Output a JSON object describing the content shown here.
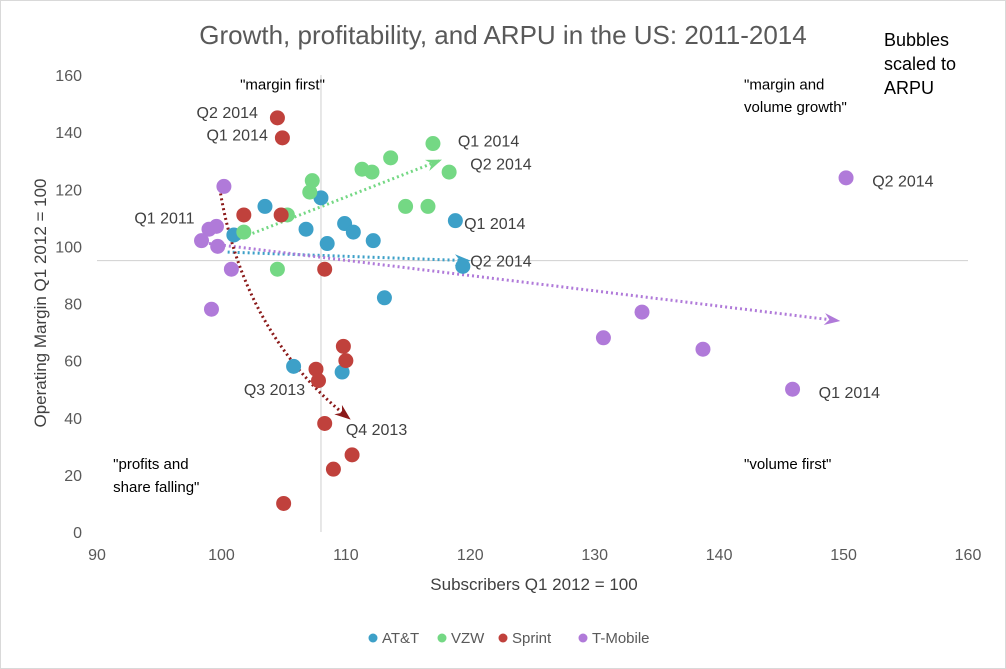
{
  "chart_data": {
    "type": "scatter",
    "title": "Growth, profitability,  and ARPU in the US: 2011-2014",
    "xlabel": "Subscribers Q1 2012 = 100",
    "ylabel": "Operating Margin Q1 2012 = 100",
    "xlim": [
      90,
      160
    ],
    "ylim": [
      0,
      160
    ],
    "xticks": [
      90,
      100,
      110,
      120,
      130,
      140,
      150,
      160
    ],
    "yticks": [
      0,
      20,
      40,
      60,
      80,
      100,
      120,
      140,
      160
    ],
    "reference_lines": {
      "x": 108,
      "y": 95
    },
    "note": [
      "Bubbles",
      "scaled  to",
      "ARPU"
    ],
    "quadrant_labels": [
      {
        "text": "\"margin first\"",
        "x": 101.5,
        "y": 155
      },
      {
        "text": "\"margin and",
        "x": 142,
        "y": 155
      },
      {
        "text": "volume growth\"",
        "x": 142,
        "y": 147
      },
      {
        "text": "\"profits and",
        "x": 91.3,
        "y": 22
      },
      {
        "text": "share falling\"",
        "x": 91.3,
        "y": 14
      },
      {
        "text": "\"volume first\"",
        "x": 142,
        "y": 22
      }
    ],
    "series": [
      {
        "name": "AT&T",
        "color": "#3da0c8",
        "points": [
          [
            101.0,
            104
          ],
          [
            103.5,
            114
          ],
          [
            106.8,
            106
          ],
          [
            108.0,
            117
          ],
          [
            108.5,
            101
          ],
          [
            109.9,
            108
          ],
          [
            110.6,
            105
          ],
          [
            112.2,
            102
          ],
          [
            113.1,
            82
          ],
          [
            118.8,
            109
          ],
          [
            119.4,
            93
          ],
          [
            105.8,
            58
          ],
          [
            109.7,
            56
          ]
        ]
      },
      {
        "name": "VZW",
        "color": "#74d884",
        "points": [
          [
            101.8,
            105
          ],
          [
            104.5,
            92
          ],
          [
            105.3,
            111
          ],
          [
            107.1,
            119
          ],
          [
            107.3,
            123
          ],
          [
            111.3,
            127
          ],
          [
            112.1,
            126
          ],
          [
            113.6,
            131
          ],
          [
            114.8,
            114
          ],
          [
            116.6,
            114
          ],
          [
            117.0,
            136
          ],
          [
            118.3,
            126
          ]
        ]
      },
      {
        "name": "Sprint",
        "color": "#c0413c",
        "points": [
          [
            104.5,
            145
          ],
          [
            104.9,
            138
          ],
          [
            101.8,
            111
          ],
          [
            104.8,
            111
          ],
          [
            108.3,
            92
          ],
          [
            107.6,
            57
          ],
          [
            107.8,
            53
          ],
          [
            109.8,
            65
          ],
          [
            110.0,
            60
          ],
          [
            108.3,
            38
          ],
          [
            110.5,
            27
          ],
          [
            109.0,
            22
          ],
          [
            105.0,
            10
          ]
        ]
      },
      {
        "name": "T-Mobile",
        "color": "#b07ad9",
        "points": [
          [
            100.2,
            121
          ],
          [
            98.4,
            102
          ],
          [
            99.0,
            106
          ],
          [
            99.6,
            107
          ],
          [
            99.7,
            100
          ],
          [
            100.8,
            92
          ],
          [
            99.2,
            78
          ],
          [
            130.7,
            68
          ],
          [
            133.8,
            77
          ],
          [
            138.7,
            64
          ],
          [
            145.9,
            50
          ],
          [
            150.2,
            124
          ]
        ]
      }
    ],
    "trend_arrows": [
      {
        "series": "VZW",
        "from": [
          101.0,
          102
        ],
        "to": [
          117.5,
          130
        ]
      },
      {
        "series": "AT&T",
        "from": [
          100.5,
          98
        ],
        "to": [
          119.8,
          95
        ]
      },
      {
        "series": "T-Mobile",
        "from": [
          99.0,
          101
        ],
        "to": [
          149.5,
          74
        ]
      },
      {
        "series": "Sprint",
        "from": [
          99.8,
          122
        ],
        "to": [
          110.2,
          40
        ]
      }
    ],
    "point_labels": [
      {
        "text": "Q2 2014",
        "x": 98.0,
        "y": 145
      },
      {
        "text": "Q1 2014",
        "x": 98.8,
        "y": 137
      },
      {
        "text": "Q1 2011",
        "x": 93.0,
        "y": 108
      },
      {
        "text": "Q1 2014",
        "x": 119.0,
        "y": 135
      },
      {
        "text": "Q2 2014",
        "x": 120.0,
        "y": 127
      },
      {
        "text": "Q1 2014",
        "x": 119.5,
        "y": 106
      },
      {
        "text": "Q2 2014",
        "x": 120.0,
        "y": 93
      },
      {
        "text": "Q2 2014",
        "x": 152.3,
        "y": 121
      },
      {
        "text": "Q1 2014",
        "x": 148.0,
        "y": 47
      },
      {
        "text": "Q3 2013",
        "x": 101.8,
        "y": 48
      },
      {
        "text": "Q4 2013",
        "x": 110.0,
        "y": 34
      }
    ],
    "legend_position": "bottom"
  }
}
